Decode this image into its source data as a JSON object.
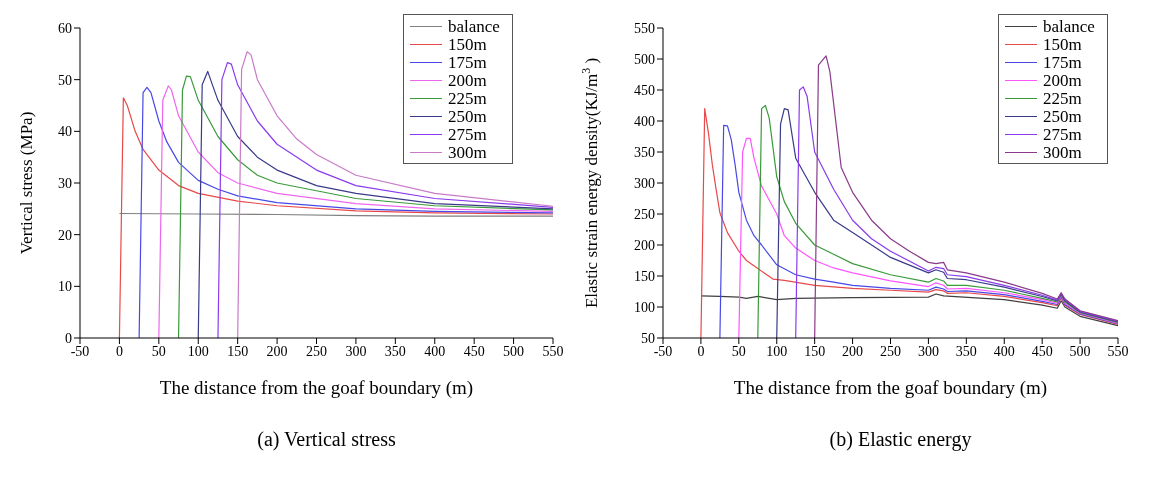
{
  "chart_data": [
    {
      "type": "line",
      "title": "(a) Vertical stress",
      "xlabel": "The distance from the goaf boundary (m)",
      "ylabel": "Vertical stress (MPa)",
      "xlim": [
        -50,
        550
      ],
      "xticks": [
        -50,
        0,
        50,
        100,
        150,
        200,
        250,
        300,
        350,
        400,
        450,
        500,
        550
      ],
      "ylim": [
        0,
        60
      ],
      "yticks": [
        0,
        10,
        20,
        30,
        40,
        50,
        60
      ],
      "grid": false,
      "legend": "top right",
      "line_style": "solid",
      "series": [
        {
          "name": "balance",
          "color": "#808080",
          "x": [
            0,
            100,
            200,
            300,
            400,
            550
          ],
          "values": [
            24.1,
            24,
            23.9,
            23.7,
            23.6,
            23.6
          ]
        },
        {
          "name": "150m",
          "color": "#e84848",
          "x": [
            0,
            5,
            10,
            20,
            30,
            50,
            75,
            100,
            150,
            200,
            300,
            400,
            550
          ],
          "values": [
            0,
            46.5,
            45,
            40,
            36.5,
            32.5,
            29.5,
            28,
            26.5,
            25.6,
            24.6,
            24.2,
            24
          ]
        },
        {
          "name": "175m",
          "color": "#4848e8",
          "x": [
            25,
            30,
            35,
            40,
            50,
            60,
            75,
            100,
            125,
            150,
            200,
            300,
            400,
            550
          ],
          "values": [
            0,
            47.5,
            48.5,
            47.5,
            42,
            38,
            34,
            30.5,
            28.8,
            27.5,
            26.2,
            25,
            24.5,
            24.2
          ]
        },
        {
          "name": "200m",
          "color": "#ee66ee",
          "x": [
            50,
            55,
            62,
            66,
            75,
            100,
            125,
            150,
            200,
            300,
            400,
            550
          ],
          "values": [
            0,
            46,
            48.8,
            48,
            43,
            36,
            32,
            30,
            28,
            26,
            25,
            24.5
          ]
        },
        {
          "name": "225m",
          "color": "#3a9a3a",
          "x": [
            75,
            80,
            85,
            90,
            100,
            125,
            150,
            175,
            200,
            300,
            400,
            550
          ],
          "values": [
            0,
            48,
            50.7,
            50.6,
            46,
            39,
            34.5,
            31.5,
            30,
            27,
            25.6,
            24.8
          ]
        },
        {
          "name": "250m",
          "color": "#3a3a8a",
          "x": [
            100,
            105,
            112,
            118,
            125,
            150,
            175,
            200,
            250,
            300,
            400,
            550
          ],
          "values": [
            0,
            49,
            51.6,
            49,
            46,
            39,
            35,
            32.5,
            29.5,
            28,
            26,
            25
          ]
        },
        {
          "name": "275m",
          "color": "#8a3aee",
          "x": [
            125,
            130,
            137,
            142,
            150,
            175,
            200,
            250,
            300,
            400,
            550
          ],
          "values": [
            0,
            50,
            53.3,
            53,
            49,
            42,
            37.5,
            32.5,
            29.5,
            27,
            25.3
          ]
        },
        {
          "name": "300m",
          "color": "#c97ac9",
          "x": [
            150,
            155,
            162,
            167,
            175,
            200,
            225,
            250,
            300,
            400,
            550
          ],
          "values": [
            0,
            52,
            55.4,
            54.8,
            50,
            43,
            38.5,
            35.5,
            31.5,
            28,
            25.5
          ]
        }
      ]
    },
    {
      "type": "line",
      "title": "(b) Elastic energy",
      "xlabel": "The distance from the goaf boundary (m)",
      "ylabel": "Elastic strain energy density(KJ/m$^{3}$)",
      "xlim": [
        -50,
        550
      ],
      "xticks": [
        -50,
        0,
        50,
        100,
        150,
        200,
        250,
        300,
        350,
        400,
        450,
        500,
        550
      ],
      "ylim": [
        50,
        550
      ],
      "yticks": [
        50,
        100,
        150,
        200,
        250,
        300,
        350,
        400,
        450,
        500,
        550
      ],
      "grid": false,
      "legend": "top right",
      "line_style": "solid",
      "series": [
        {
          "name": "balance",
          "color": "#404040",
          "x": [
            0,
            25,
            50,
            60,
            75,
            100,
            125,
            200,
            300,
            310,
            320,
            400,
            450,
            470,
            475,
            480,
            500,
            550
          ],
          "values": [
            118,
            117,
            116,
            114,
            117,
            112,
            114,
            115,
            116,
            121,
            118,
            112,
            103,
            98,
            110,
            100,
            85,
            70
          ]
        },
        {
          "name": "150m",
          "color": "#e84848",
          "x": [
            0,
            5,
            10,
            15,
            20,
            25,
            35,
            50,
            60,
            75,
            95,
            110,
            150,
            200,
            250,
            300,
            310,
            320,
            325,
            350,
            400,
            450,
            470,
            475,
            480,
            500,
            550
          ],
          "values": [
            50,
            420,
            380,
            330,
            290,
            252,
            220,
            190,
            175,
            162,
            145,
            143,
            135,
            130,
            127,
            124,
            128,
            126,
            122,
            123,
            117,
            107,
            102,
            115,
            103,
            88,
            72
          ]
        },
        {
          "name": "175m",
          "color": "#4848e8",
          "x": [
            25,
            30,
            35,
            40,
            45,
            50,
            60,
            70,
            80,
            100,
            125,
            150,
            175,
            200,
            250,
            300,
            310,
            320,
            325,
            350,
            400,
            450,
            470,
            475,
            480,
            500,
            550
          ],
          "values": [
            50,
            393,
            392,
            370,
            330,
            285,
            240,
            215,
            200,
            168,
            152,
            145,
            140,
            135,
            130,
            127,
            132,
            129,
            125,
            126,
            120,
            109,
            104,
            117,
            104,
            89,
            73
          ]
        },
        {
          "name": "200m",
          "color": "#ff55ff",
          "x": [
            50,
            55,
            60,
            65,
            70,
            80,
            100,
            110,
            125,
            150,
            175,
            200,
            250,
            300,
            310,
            320,
            325,
            350,
            400,
            450,
            470,
            475,
            480,
            500,
            550
          ],
          "values": [
            50,
            350,
            372,
            372,
            340,
            295,
            250,
            215,
            195,
            175,
            163,
            155,
            142,
            133,
            139,
            135,
            129,
            130,
            123,
            112,
            106,
            119,
            106,
            90,
            74
          ]
        },
        {
          "name": "225m",
          "color": "#3a9a3a",
          "x": [
            75,
            80,
            85,
            90,
            100,
            110,
            125,
            150,
            175,
            200,
            250,
            300,
            310,
            320,
            325,
            350,
            400,
            450,
            470,
            475,
            480,
            500,
            550
          ],
          "values": [
            50,
            420,
            425,
            405,
            310,
            270,
            235,
            200,
            185,
            170,
            152,
            140,
            146,
            142,
            135,
            135,
            127,
            114,
            108,
            120,
            108,
            91,
            75
          ]
        },
        {
          "name": "250m",
          "color": "#3a3a8a",
          "x": [
            100,
            105,
            110,
            115,
            125,
            150,
            175,
            200,
            250,
            300,
            310,
            320,
            325,
            350,
            400,
            450,
            470,
            475,
            480,
            500,
            550
          ],
          "values": [
            50,
            395,
            420,
            418,
            340,
            285,
            240,
            220,
            180,
            155,
            160,
            156,
            146,
            144,
            132,
            117,
            110,
            121,
            110,
            92,
            76
          ]
        },
        {
          "name": "275m",
          "color": "#8a3aee",
          "x": [
            125,
            130,
            135,
            140,
            150,
            175,
            200,
            225,
            250,
            300,
            310,
            320,
            325,
            350,
            400,
            450,
            470,
            475,
            480,
            500,
            550
          ],
          "values": [
            50,
            450,
            455,
            440,
            350,
            290,
            240,
            210,
            190,
            158,
            164,
            162,
            152,
            149,
            135,
            119,
            111,
            122,
            112,
            93,
            77
          ]
        },
        {
          "name": "300m",
          "color": "#8a3a8a",
          "x": [
            150,
            155,
            165,
            170,
            185,
            200,
            225,
            250,
            275,
            300,
            310,
            320,
            325,
            350,
            400,
            450,
            470,
            475,
            480,
            500,
            550
          ],
          "values": [
            50,
            490,
            505,
            480,
            325,
            285,
            240,
            210,
            190,
            172,
            170,
            172,
            160,
            155,
            140,
            122,
            113,
            123,
            113,
            94,
            78
          ]
        }
      ]
    }
  ]
}
